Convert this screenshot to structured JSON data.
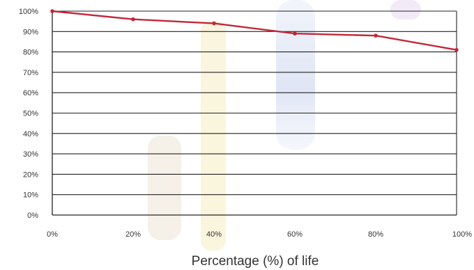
{
  "chart_data": {
    "type": "line",
    "title": "",
    "xlabel": "Percentage (%) of life",
    "ylabel": "",
    "x": [
      0,
      20,
      40,
      60,
      80,
      100
    ],
    "x_tick_labels": [
      "0%",
      "20%",
      "40%",
      "60%",
      "80%",
      "100%"
    ],
    "y_tick_labels": [
      "0%",
      "10%",
      "20%",
      "30%",
      "40%",
      "50%",
      "60%",
      "70%",
      "80%",
      "90%",
      "100%"
    ],
    "xlim": [
      0,
      100
    ],
    "ylim": [
      0,
      100
    ],
    "grid": true,
    "legend": "none",
    "series": [
      {
        "values": [
          100,
          96,
          94,
          89,
          88,
          81
        ]
      }
    ],
    "colors": {
      "line": "#c0283a",
      "grid": "#222222",
      "axis": "#222222",
      "text": "#333333"
    }
  }
}
